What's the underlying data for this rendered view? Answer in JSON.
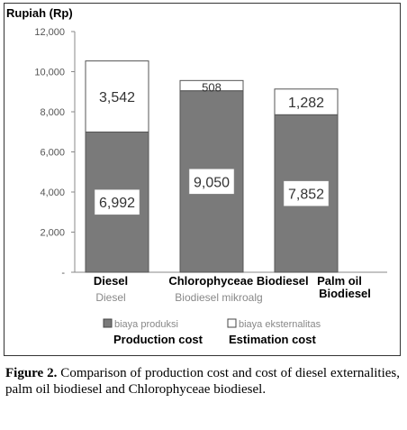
{
  "chart_data": {
    "type": "bar",
    "stacked": true,
    "ylabel": "Rupiah (Rp)",
    "ylim": [
      0,
      12000
    ],
    "yticks": [
      "12,000",
      "10,000",
      "8,000",
      "6,000",
      "4,000",
      "2,000",
      "-"
    ],
    "ytick_values": [
      12000,
      10000,
      8000,
      6000,
      4000,
      2000,
      0
    ],
    "categories": [
      {
        "label_en": "Diesel",
        "label_id": "Diesel"
      },
      {
        "label_en": "Chlorophyceae Biodiesel",
        "label_id": "Biodiesel mikroalg"
      },
      {
        "label_en": "Palm oil Biodiesel",
        "label_id": ""
      }
    ],
    "series": [
      {
        "name": "biaya produksi",
        "name_en": "Production cost",
        "color": "#7a7a7a",
        "values": [
          6992,
          9050,
          7852
        ],
        "labels": [
          "6,992",
          "9,050",
          "7,852"
        ]
      },
      {
        "name": "biaya eksternalitas",
        "name_en": "Estimation cost",
        "color": "#ffffff",
        "values": [
          3542,
          508,
          1282
        ],
        "labels": [
          "3,542",
          "508",
          "1,282"
        ]
      }
    ],
    "grid": false,
    "legend": "bottom"
  },
  "caption": {
    "label": "Figure 2.",
    "text": " Comparison of production cost and cost of diesel externalities, palm oil biodiesel and Chlorophyceae biodiesel."
  }
}
